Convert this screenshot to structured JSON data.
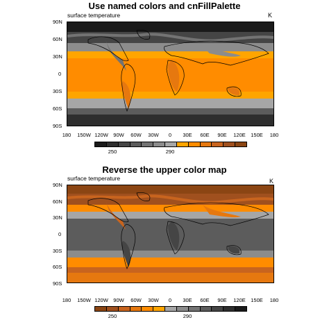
{
  "panels": [
    {
      "title": "Use named colors and cnFillPalette",
      "subtitle": "surface temperature",
      "units": "K",
      "lat_labels": [
        "90N",
        "60N",
        "30N",
        "0",
        "30S",
        "60S",
        "90S"
      ],
      "lon_labels": [
        "180",
        "150W",
        "120W",
        "90W",
        "60W",
        "30W",
        "0",
        "30E",
        "60E",
        "90E",
        "120E",
        "150E",
        "180"
      ],
      "colorbar_labels": [
        "250",
        "290"
      ],
      "palette": [
        "#1a1a1a",
        "#2e2e2e",
        "#454545",
        "#5c5c5c",
        "#737373",
        "#8c8c8c",
        "#a6a6a6",
        "#ffa500",
        "#ff8c00",
        "#e6780f",
        "#c8641e",
        "#a0501e",
        "#8b4513"
      ]
    },
    {
      "title": "Reverse the upper color map",
      "subtitle": "surface temperature",
      "units": "K",
      "lat_labels": [
        "90N",
        "60N",
        "30N",
        "0",
        "30S",
        "60S",
        "90S"
      ],
      "lon_labels": [
        "180",
        "150W",
        "120W",
        "90W",
        "60W",
        "30W",
        "0",
        "30E",
        "60E",
        "90E",
        "120E",
        "150E",
        "180"
      ],
      "colorbar_labels": [
        "250",
        "290"
      ],
      "palette": [
        "#8b4513",
        "#a0501e",
        "#c8641e",
        "#e6780f",
        "#ff8c00",
        "#ffa500",
        "#a6a6a6",
        "#8c8c8c",
        "#737373",
        "#5c5c5c",
        "#454545",
        "#2e2e2e",
        "#1a1a1a"
      ]
    }
  ]
}
